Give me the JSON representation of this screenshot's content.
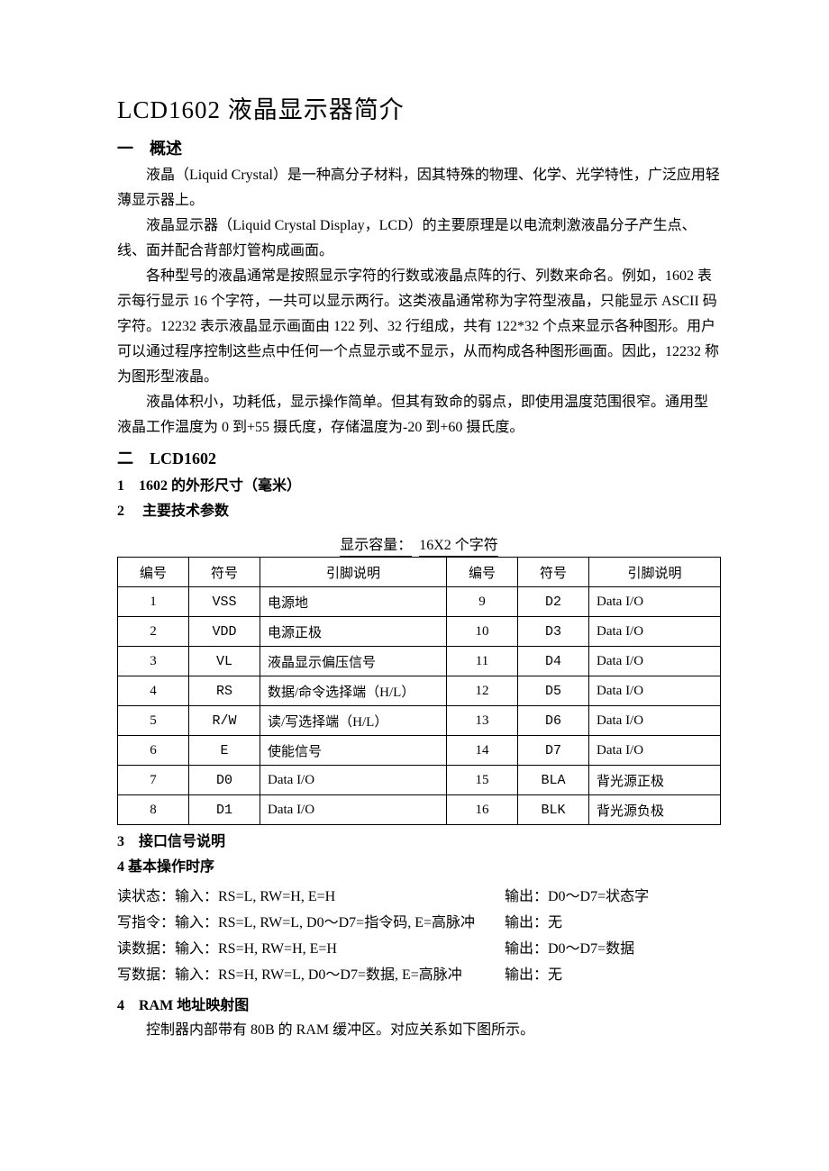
{
  "title": "LCD1602 液晶显示器简介",
  "section1": {
    "heading": "一　概述",
    "p1": "液晶（Liquid Crystal）是一种高分子材料，因其特殊的物理、化学、光学特性，广泛应用轻薄显示器上。",
    "p2": "液晶显示器（Liquid Crystal Display，LCD）的主要原理是以电流刺激液晶分子产生点、线、面并配合背部灯管构成画面。",
    "p3": "各种型号的液晶通常是按照显示字符的行数或液晶点阵的行、列数来命名。例如，1602 表示每行显示 16 个字符，一共可以显示两行。这类液晶通常称为字符型液晶，只能显示 ASCII 码字符。12232 表示液晶显示画面由 122 列、32 行组成，共有 122*32 个点来显示各种图形。用户可以通过程序控制这些点中任何一个点显示或不显示，从而构成各种图形画面。因此，12232 称为图形型液晶。",
    "p4": "液晶体积小，功耗低，显示操作简单。但其有致命的弱点，即使用温度范围很窄。通用型液晶工作温度为 0 到+55 摄氏度，存储温度为-20 到+60 摄氏度。"
  },
  "section2": {
    "heading": "二　LCD1602",
    "sub1": "1　1602 的外形尺寸（毫米）",
    "sub2": "2　 主要技术参数",
    "spec_label": "显示容量：",
    "spec_value": "16X2 个字符",
    "table_headers": {
      "num": "编号",
      "sym": "符号",
      "desc": "引脚说明"
    },
    "pins": [
      {
        "n": "1",
        "s": "VSS",
        "d": "电源地",
        "n2": "9",
        "s2": "D2",
        "d2": "Data I/O"
      },
      {
        "n": "2",
        "s": "VDD",
        "d": "电源正极",
        "n2": "10",
        "s2": "D3",
        "d2": "Data I/O"
      },
      {
        "n": "3",
        "s": "VL",
        "d": "液晶显示偏压信号",
        "n2": "11",
        "s2": "D4",
        "d2": "Data I/O"
      },
      {
        "n": "4",
        "s": "RS",
        "d": "数据/命令选择端（H/L）",
        "n2": "12",
        "s2": "D5",
        "d2": "Data I/O"
      },
      {
        "n": "5",
        "s": "R/W",
        "d": "读/写选择端（H/L）",
        "n2": "13",
        "s2": "D6",
        "d2": "Data I/O"
      },
      {
        "n": "6",
        "s": "E",
        "d": "使能信号",
        "n2": "14",
        "s2": "D7",
        "d2": "Data I/O"
      },
      {
        "n": "7",
        "s": "D0",
        "d": "Data I/O",
        "n2": "15",
        "s2": "BLA",
        "d2": "背光源正极"
      },
      {
        "n": "8",
        "s": "D1",
        "d": "Data I/O",
        "n2": "16",
        "s2": "BLK",
        "d2": "背光源负极"
      }
    ],
    "sub3": "3　接口信号说明",
    "sub4": "4 基本操作时序",
    "timing": [
      {
        "l": "读状态：输入：RS=L, RW=H, E=H",
        "r": "输出：D0～D7=状态字"
      },
      {
        "l": "写指令：输入：RS=L, RW=L, D0～D7=指令码, E=高脉冲",
        "r": "输出：无"
      },
      {
        "l": "读数据：输入：RS=H, RW=H, E=H",
        "r": "输出：D0～D7=数据"
      },
      {
        "l": "写数据：输入：RS=H, RW=L, D0～D7=数据, E=高脉冲",
        "r": "输出：无"
      }
    ],
    "sub5": "4　RAM 地址映射图",
    "p5": "控制器内部带有 80B 的 RAM 缓冲区。对应关系如下图所示。"
  }
}
